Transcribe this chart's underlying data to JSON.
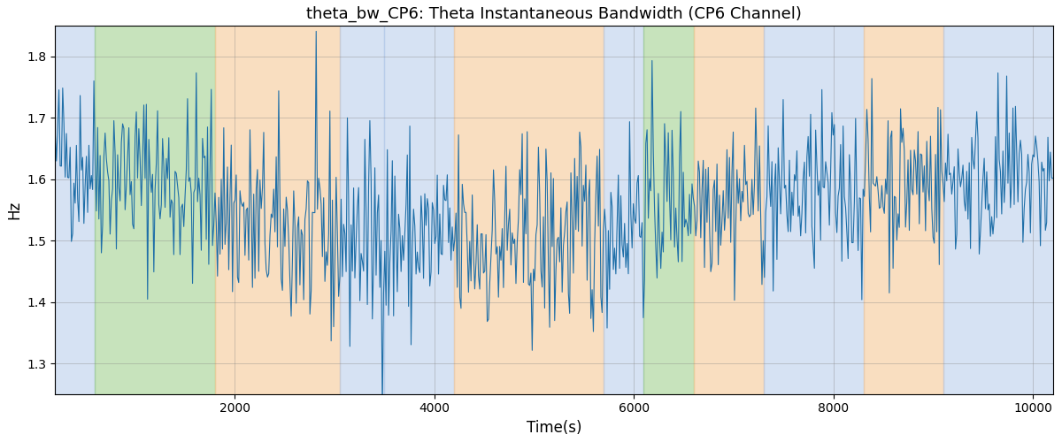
{
  "title": "theta_bw_CP6: Theta Instantaneous Bandwidth (CP6 Channel)",
  "xlabel": "Time(s)",
  "ylabel": "Hz",
  "xlim": [
    200,
    10200
  ],
  "ylim": [
    1.25,
    1.85
  ],
  "line_color": "#1f6fa8",
  "line_width": 0.8,
  "bg_regions": [
    {
      "xstart": 200,
      "xend": 600,
      "color": "#aec6e8",
      "alpha": 0.5
    },
    {
      "xstart": 600,
      "xend": 1800,
      "color": "#90c97a",
      "alpha": 0.5
    },
    {
      "xstart": 1800,
      "xend": 3050,
      "color": "#f5c897",
      "alpha": 0.6
    },
    {
      "xstart": 3050,
      "xend": 3500,
      "color": "#aec6e8",
      "alpha": 0.5
    },
    {
      "xstart": 3500,
      "xend": 4200,
      "color": "#aec6e8",
      "alpha": 0.5
    },
    {
      "xstart": 4200,
      "xend": 5700,
      "color": "#f5c897",
      "alpha": 0.6
    },
    {
      "xstart": 5700,
      "xend": 6100,
      "color": "#aec6e8",
      "alpha": 0.5
    },
    {
      "xstart": 6100,
      "xend": 6600,
      "color": "#90c97a",
      "alpha": 0.5
    },
    {
      "xstart": 6600,
      "xend": 7300,
      "color": "#f5c897",
      "alpha": 0.6
    },
    {
      "xstart": 7300,
      "xend": 8300,
      "color": "#aec6e8",
      "alpha": 0.5
    },
    {
      "xstart": 8300,
      "xend": 9100,
      "color": "#f5c897",
      "alpha": 0.6
    },
    {
      "xstart": 9100,
      "xend": 10200,
      "color": "#aec6e8",
      "alpha": 0.5
    }
  ],
  "seed": 42,
  "n_points": 800,
  "title_fontsize": 13
}
